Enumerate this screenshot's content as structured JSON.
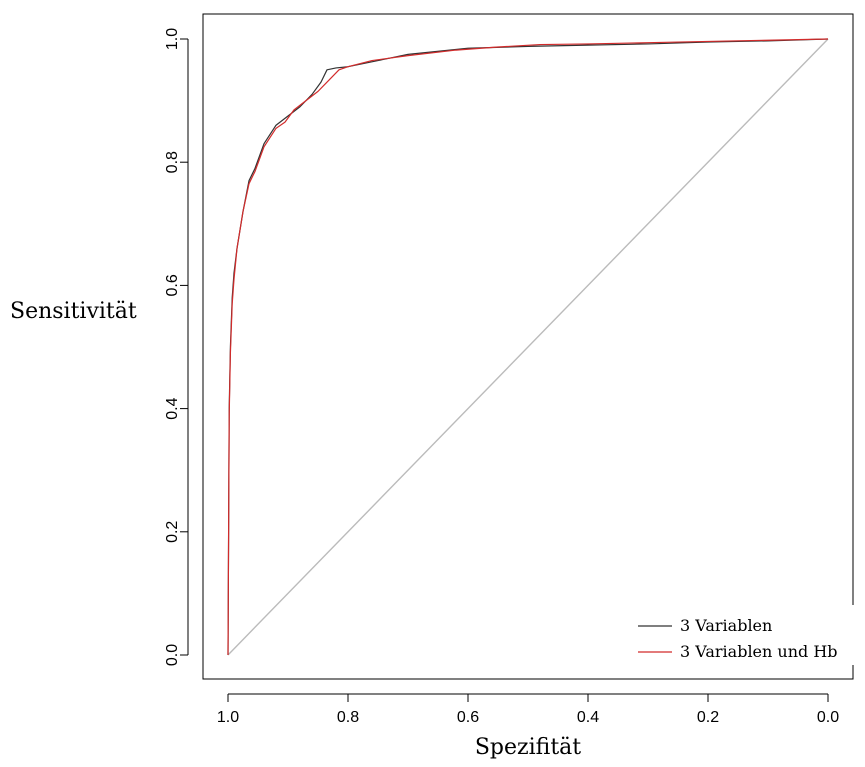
{
  "chart_data": {
    "type": "line",
    "xlabel": "Spezifität",
    "ylabel": "Sensitivität",
    "xlim": [
      1.0,
      0.0
    ],
    "ylim": [
      0.0,
      1.0
    ],
    "x_reversed": true,
    "x_ticks": [
      "1.0",
      "0.8",
      "0.6",
      "0.4",
      "0.2",
      "0.0"
    ],
    "x_tick_values": [
      1.0,
      0.8,
      0.6,
      0.4,
      0.2,
      0.0
    ],
    "y_ticks": [
      "0.0",
      "0.2",
      "0.4",
      "0.6",
      "0.8",
      "1.0"
    ],
    "y_tick_values": [
      0.0,
      0.2,
      0.4,
      0.6,
      0.8,
      1.0
    ],
    "grid": false,
    "legend_position": "bottom-right",
    "series": [
      {
        "name": "3 Variablen",
        "color": "#333333",
        "x": [
          1.0,
          0.998,
          0.996,
          0.993,
          0.99,
          0.985,
          0.975,
          0.965,
          0.955,
          0.94,
          0.92,
          0.9,
          0.88,
          0.86,
          0.845,
          0.835,
          0.82,
          0.8,
          0.75,
          0.7,
          0.6,
          0.5,
          0.4,
          0.3,
          0.2,
          0.1,
          0.0
        ],
        "y": [
          0.0,
          0.4,
          0.5,
          0.58,
          0.62,
          0.66,
          0.72,
          0.77,
          0.79,
          0.83,
          0.86,
          0.875,
          0.89,
          0.91,
          0.93,
          0.95,
          0.953,
          0.955,
          0.965,
          0.975,
          0.985,
          0.988,
          0.99,
          0.992,
          0.995,
          0.997,
          1.0
        ]
      },
      {
        "name": "3 Variablen und Hb",
        "color": "#d22b2b",
        "x": [
          1.0,
          0.998,
          0.996,
          0.993,
          0.99,
          0.985,
          0.975,
          0.965,
          0.955,
          0.94,
          0.92,
          0.905,
          0.89,
          0.87,
          0.85,
          0.83,
          0.815,
          0.8,
          0.76,
          0.7,
          0.62,
          0.55,
          0.48,
          0.4,
          0.3,
          0.2,
          0.1,
          0.0
        ],
        "y": [
          0.0,
          0.39,
          0.49,
          0.57,
          0.61,
          0.66,
          0.72,
          0.765,
          0.785,
          0.825,
          0.855,
          0.865,
          0.885,
          0.9,
          0.915,
          0.935,
          0.95,
          0.955,
          0.965,
          0.973,
          0.982,
          0.987,
          0.991,
          0.992,
          0.994,
          0.996,
          0.998,
          1.0
        ]
      }
    ],
    "reference_line": {
      "color": "#bbbbbb",
      "x": [
        1.0,
        0.0
      ],
      "y": [
        0.0,
        1.0
      ]
    }
  }
}
